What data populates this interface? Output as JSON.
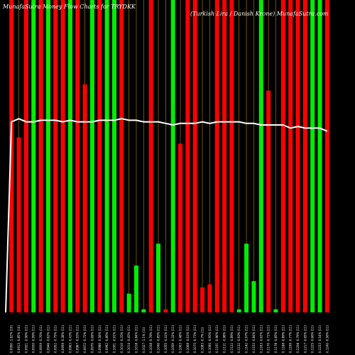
{
  "chart_data": {
    "type": "bar",
    "title": "MunafaSutra Money Flow Charts for TRYDKK",
    "subtitle": "(Turkish Lira / Danish Krone) MunafaSutra.com",
    "ylim": [
      0,
      100
    ],
    "grid": false,
    "colors": {
      "up": "#00ee00",
      "down": "#ff0000",
      "line": "#ffffff",
      "grid": "#b8860b",
      "background": "#000000"
    },
    "categories": [
      "0.0950 -1.62% (10)",
      "0.0913 -0.85% (10)",
      "0.0921 -0.96% (11)",
      "0.0930 -0.99% (11)",
      "0.0939 -0.76% (11)",
      "0.0946 -0.62% (11)",
      "0.0952 -0.75% (11)",
      "0.0959 -0.38% (11)",
      "0.0963 -0.43% (11)",
      "0.0967 -0.55% (11)",
      "0.0972 -0.72% (11)",
      "0.0979 -0.69% (11)",
      "0.0986 -0.58% (11)",
      "0.0992 -0.86% (11)",
      "0.1001 -0.91% (11)",
      "0.1010 -0.35% (11)",
      "0.1014 -0.45% (11)",
      "0.1018 -0.84% (11)",
      "0.1027 -1.1% (11)",
      "0.1038 -0.78% (11)",
      "0.1046 -0.85% (11)",
      "0.1055 -0.41% (11)",
      "0.1059 -0.33% (11)",
      "0.1063 -0.48% (11)",
      "0.1068 -0.61% (11)",
      "0.1075 -0.73% (11)",
      "0.1083 -0.7% (11)",
      "0.1090 -0.95% (11)",
      "0.1101 -0.96% (11)",
      "0.1111 -0.98% (11)",
      "0.1122 -0.89% (11)",
      "0.1132 -0.93% (11)",
      "0.1142 -0.97% (11)",
      "0.1153 -0.84% (11)",
      "0.1163 -0.63% (11)",
      "0.1170 -0.71% (11)",
      "0.1178 -0.85% (11)",
      "0.1188 -0.89% (11)",
      "0.1199 -0.77% (11)",
      "0.1208 -0.79% (11)",
      "0.1217 -0.65% (11)",
      "0.1225 -0.66% (11)",
      "0.1233 -0.54% (11)",
      "0.1240 -0.56% (11)"
    ],
    "series": [
      {
        "values": [
          100,
          56,
          100,
          100,
          100,
          100,
          100,
          100,
          100,
          100,
          73,
          100,
          100,
          100,
          100,
          100,
          6,
          15,
          1,
          100,
          22,
          1,
          100,
          54,
          100,
          100,
          8,
          9,
          100,
          100,
          100,
          1,
          22,
          10,
          100,
          71,
          1,
          100,
          100,
          100,
          100,
          100,
          100,
          100
        ],
        "directions": [
          "down",
          "down",
          "down",
          "up",
          "down",
          "up",
          "down",
          "down",
          "up",
          "down",
          "down",
          "up",
          "down",
          "up",
          "up",
          "down",
          "up",
          "up",
          "up",
          "down",
          "up",
          "down",
          "up",
          "down",
          "down",
          "down",
          "down",
          "down",
          "down",
          "down",
          "down",
          "up",
          "up",
          "up",
          "up",
          "down",
          "up",
          "down",
          "down",
          "down",
          "down",
          "up",
          "up",
          "down"
        ]
      },
      {
        "type": "line",
        "values": [
          61,
          62,
          61,
          61,
          61.5,
          61.5,
          61.5,
          61,
          61.5,
          61,
          61,
          61,
          61.5,
          61.5,
          61.5,
          62,
          61.5,
          61.5,
          61,
          61,
          61,
          60.5,
          60,
          60.5,
          60.5,
          60.5,
          61,
          60.5,
          61,
          61,
          61,
          61,
          60.5,
          60.5,
          60,
          60,
          60,
          60,
          59,
          59.5,
          59,
          59,
          59,
          58
        ]
      }
    ]
  }
}
